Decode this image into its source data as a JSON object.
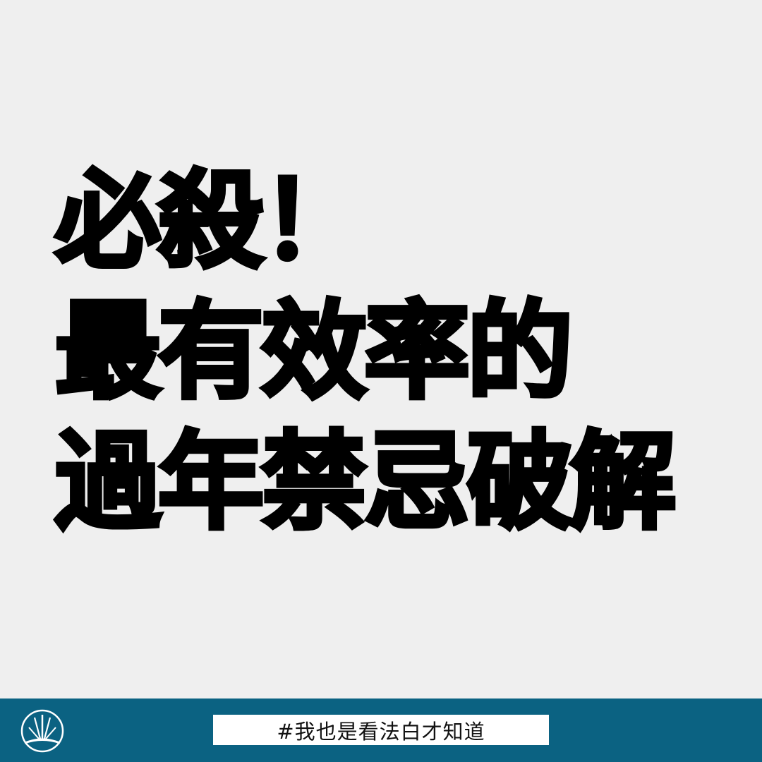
{
  "headline": {
    "line1": "必殺！",
    "line2": "最有效率的",
    "line3": "過年禁忌破解"
  },
  "footer": {
    "hashtag": "#我也是看法白才知道",
    "logo_icon": "circle-brush-logo-icon"
  },
  "colors": {
    "background": "#efefef",
    "footer": "#0b6282",
    "text": "#000000",
    "hashtag_box": "#ffffff"
  }
}
